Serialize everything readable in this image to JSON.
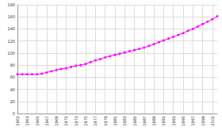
{
  "chart_data": {
    "type": "line",
    "categories": [
      "1961",
      null,
      "1963",
      null,
      "1965",
      null,
      "1967",
      null,
      "1969",
      null,
      "1971",
      null,
      "1973",
      null,
      "1975",
      null,
      "1977",
      null,
      "1979",
      null,
      "1981",
      null,
      "1983",
      null,
      "1985",
      null,
      "1987",
      null,
      "1989",
      null,
      "1991",
      null,
      "1993",
      null,
      "1995",
      null,
      "1997",
      null,
      "1999",
      null,
      "2001",
      null
    ],
    "values": [
      65,
      65,
      65,
      65,
      65,
      66,
      68,
      70,
      72,
      74,
      75,
      77,
      79,
      80,
      82,
      85,
      88,
      90,
      93,
      95,
      97,
      99,
      101,
      103,
      105,
      107,
      109,
      112,
      115,
      118,
      121,
      124,
      127,
      130,
      133,
      137,
      140,
      144,
      148,
      152,
      156,
      161
    ],
    "color": "#ff00ff",
    "marker": "circle",
    "ylim": [
      0,
      180
    ],
    "yticks": [
      0,
      20,
      40,
      60,
      80,
      100,
      120,
      140,
      160,
      180
    ],
    "grid": true
  }
}
